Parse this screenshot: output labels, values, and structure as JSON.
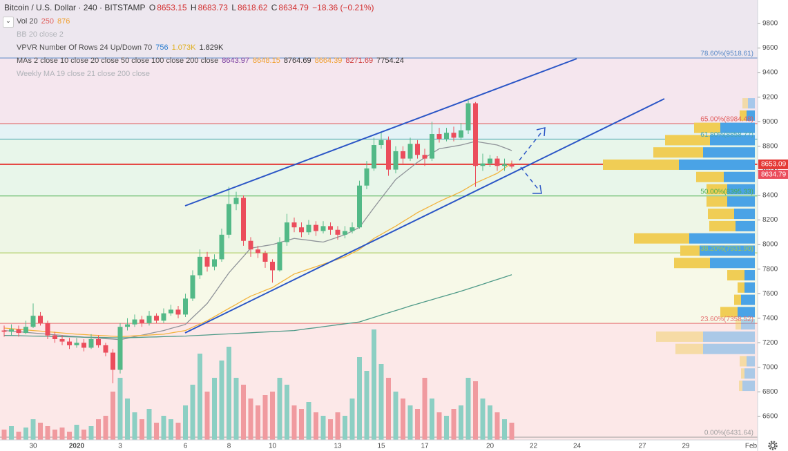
{
  "header": {
    "symbol": "Bitcoin / U.S. Dollar · 240 · BITSTAMP",
    "o": "O",
    "h": "H",
    "l": "L",
    "c": "C",
    "change": "−18.36 (−0.21%)"
  },
  "indicators": [
    {
      "name": "Vol 20",
      "values": [
        "250",
        "876"
      ],
      "colors": [
        "#e0605e",
        "#f0a030"
      ]
    },
    {
      "name": "BB 20 close 2",
      "values": [],
      "colors": []
    },
    {
      "name": "VPVR Number Of Rows 24 Up/Down 70",
      "values": [
        "756",
        "1.073K",
        "1.829K"
      ],
      "colors": [
        "#2f80d0",
        "#e0b020",
        "#333333"
      ]
    },
    {
      "name": "MAs 2 close 10 close 20 close 50 close 100 close 200 close",
      "values": [
        "8643.97",
        "8648.15",
        "8764.69",
        "8664.39",
        "8271.69",
        "7754.24"
      ],
      "colors": [
        "#7b3fa0",
        "#f0a030",
        "#333333",
        "#f0a030",
        "#d04040",
        "#333333"
      ]
    },
    {
      "name": "Weekly MA 19 close 21 close 200 close",
      "values": [],
      "colors": []
    }
  ],
  "chart_data": {
    "type": "candlestick",
    "categories": [
      null,
      null,
      null,
      null,
      "30",
      null,
      null,
      null,
      null,
      null,
      "2020",
      null,
      null,
      null,
      null,
      null,
      "3",
      null,
      null,
      null,
      null,
      null,
      null,
      null,
      null,
      "6",
      null,
      null,
      null,
      null,
      null,
      "8",
      null,
      null,
      null,
      null,
      null,
      "10",
      null,
      null,
      null,
      null,
      null,
      null,
      null,
      null,
      "13",
      null,
      null,
      null,
      null,
      null,
      "15",
      null,
      null,
      null,
      null,
      null,
      "17",
      null,
      null,
      null,
      null,
      null,
      null,
      null,
      null,
      "20",
      null,
      null,
      null,
      null,
      null,
      "22",
      null,
      null,
      null,
      null,
      null,
      "24",
      null,
      null,
      null,
      null,
      null,
      null,
      null,
      null,
      "27",
      null,
      null,
      null,
      null,
      null,
      "29",
      null,
      null,
      null,
      null,
      null,
      null,
      null,
      null,
      "Feb"
    ],
    "open": [
      7300,
      7290,
      7310,
      7280,
      7330,
      7420,
      7360,
      7260,
      7230,
      7210,
      7180,
      7200,
      7160,
      7230,
      7180,
      7120,
      6980,
      7330,
      7350,
      7390,
      7360,
      7420,
      7380,
      7440,
      7470,
      7430,
      7560,
      7750,
      7900,
      7820,
      7880,
      8080,
      8330,
      8380,
      8030,
      7960,
      7930,
      7860,
      7790,
      8020,
      8180,
      8140,
      8100,
      8160,
      8110,
      8150,
      8120,
      8080,
      8110,
      8140,
      8480,
      8620,
      8810,
      8850,
      8610,
      8760,
      8700,
      8820,
      8730,
      8700,
      8900,
      8860,
      8910,
      8870,
      8930,
      9150,
      8640,
      8660,
      8700,
      8640,
      8653.15,
      null,
      null,
      null,
      null,
      null,
      null,
      null,
      null,
      null,
      null,
      null,
      null,
      null,
      null,
      null,
      null,
      null,
      null,
      null,
      null,
      null,
      null,
      null,
      null,
      null,
      null,
      null,
      null,
      null,
      null,
      null,
      null,
      null
    ],
    "high": [
      7340,
      7350,
      7340,
      7380,
      7520,
      7450,
      7380,
      7290,
      7260,
      7240,
      7240,
      7230,
      7270,
      7260,
      7200,
      7150,
      7360,
      7400,
      7430,
      7420,
      7460,
      7440,
      7480,
      7510,
      7500,
      7600,
      7790,
      7960,
      7940,
      7920,
      8130,
      8470,
      8430,
      8400,
      8060,
      7990,
      7950,
      7880,
      8060,
      8250,
      8220,
      8180,
      8200,
      8190,
      8190,
      8180,
      8150,
      8150,
      8180,
      8520,
      8680,
      8870,
      8920,
      8880,
      8800,
      8800,
      8870,
      8850,
      8780,
      9000,
      8950,
      8950,
      8960,
      8990,
      9190,
      9160,
      8740,
      8730,
      8720,
      8700,
      8683.73,
      null,
      null,
      null,
      null,
      null,
      null,
      null,
      null,
      null,
      null,
      null,
      null,
      null,
      null,
      null,
      null,
      null,
      null,
      null,
      null,
      null,
      null,
      null,
      null,
      null,
      null,
      null,
      null,
      null,
      null,
      null,
      null,
      null
    ],
    "low": [
      7250,
      7260,
      7250,
      7270,
      7320,
      7340,
      7230,
      7200,
      7180,
      7150,
      7160,
      7130,
      7150,
      7160,
      7090,
      6870,
      6950,
      7300,
      7330,
      7330,
      7340,
      7360,
      7360,
      7420,
      7400,
      7410,
      7540,
      7720,
      7780,
      7790,
      7860,
      8050,
      8280,
      7990,
      7900,
      7890,
      7810,
      7690,
      7780,
      7990,
      8100,
      8060,
      8080,
      8070,
      8090,
      8080,
      8040,
      8050,
      8090,
      8130,
      8450,
      8600,
      8780,
      8560,
      8580,
      8660,
      8680,
      8700,
      8640,
      8680,
      8830,
      8840,
      8840,
      8850,
      8900,
      8470,
      8600,
      8630,
      8600,
      8600,
      8618.62,
      null,
      null,
      null,
      null,
      null,
      null,
      null,
      null,
      null,
      null,
      null,
      null,
      null,
      null,
      null,
      null,
      null,
      null,
      null,
      null,
      null,
      null,
      null,
      null,
      null,
      null,
      null,
      null,
      null,
      null,
      null,
      null,
      null
    ],
    "close": [
      7290,
      7310,
      7280,
      7330,
      7420,
      7360,
      7260,
      7230,
      7210,
      7180,
      7200,
      7160,
      7230,
      7180,
      7120,
      6980,
      7330,
      7350,
      7390,
      7360,
      7420,
      7380,
      7440,
      7470,
      7430,
      7560,
      7750,
      7900,
      7820,
      7880,
      8080,
      8330,
      8380,
      8030,
      7960,
      7930,
      7860,
      7790,
      8020,
      8180,
      8140,
      8100,
      8160,
      8110,
      8150,
      8120,
      8080,
      8110,
      8140,
      8480,
      8620,
      8810,
      8850,
      8610,
      8760,
      8700,
      8820,
      8730,
      8700,
      8900,
      8860,
      8910,
      8870,
      8930,
      9150,
      8640,
      8660,
      8700,
      8640,
      8653.15,
      8634.79,
      null,
      null,
      null,
      null,
      null,
      null,
      null,
      null,
      null,
      null,
      null,
      null,
      null,
      null,
      null,
      null,
      null,
      null,
      null,
      null,
      null,
      null,
      null,
      null,
      null,
      null,
      null,
      null,
      null,
      null,
      null,
      null,
      null
    ],
    "volume": [
      150,
      200,
      120,
      180,
      300,
      250,
      200,
      150,
      180,
      120,
      220,
      150,
      200,
      300,
      350,
      700,
      900,
      600,
      400,
      300,
      450,
      250,
      350,
      300,
      250,
      500,
      800,
      1250,
      700,
      900,
      1150,
      1350,
      900,
      800,
      600,
      500,
      650,
      700,
      900,
      800,
      500,
      450,
      550,
      400,
      350,
      300,
      400,
      350,
      600,
      1200,
      1000,
      1600,
      1100,
      900,
      700,
      600,
      500,
      450,
      900,
      600,
      400,
      350,
      450,
      500,
      900,
      850,
      600,
      500,
      400,
      300,
      250,
      null,
      null,
      null,
      null,
      null,
      null,
      null,
      null,
      null,
      null,
      null,
      null,
      null,
      null,
      null,
      null,
      null,
      null,
      null,
      null,
      null,
      null,
      null,
      null,
      null,
      null,
      null,
      null,
      null,
      null,
      null,
      null,
      null
    ],
    "moving_averages": [
      {
        "color": "#8f9399",
        "values": [
          7300,
          7295,
          7290,
          7285,
          7280,
          7275,
          7270,
          7265,
          7260,
          7255,
          7250,
          7246,
          7242,
          7238,
          7234,
          7230,
          7225,
          7237,
          7250,
          7262,
          7275,
          7288,
          7300,
          7317,
          7333,
          7350,
          7407,
          7463,
          7520,
          7603,
          7687,
          7770,
          7837,
          7903,
          7970,
          7980,
          7990,
          8000,
          8017,
          8033,
          8050,
          8042,
          8035,
          8027,
          8020,
          8040,
          8060,
          8080,
          8110,
          8140,
          8220,
          8300,
          8377,
          8453,
          8530,
          8577,
          8623,
          8670,
          8707,
          8743,
          8780,
          8790,
          8800,
          8810,
          8825,
          8840,
          8830,
          8820,
          8810,
          8788,
          8765,
          null,
          null,
          null,
          null,
          null,
          null,
          null,
          null,
          null,
          null,
          null,
          null,
          null,
          null,
          null,
          null,
          null,
          null,
          null,
          null,
          null,
          null,
          null,
          null,
          null,
          null,
          null,
          null,
          null,
          null,
          null,
          null,
          null
        ]
      },
      {
        "color": "#f2b33d",
        "values": [
          7320,
          7315,
          7310,
          7305,
          7300,
          7295,
          7290,
          7285,
          7280,
          7275,
          7270,
          7267,
          7263,
          7260,
          7257,
          7253,
          7250,
          7253,
          7257,
          7260,
          7263,
          7267,
          7270,
          7280,
          7290,
          7300,
          7327,
          7353,
          7380,
          7413,
          7447,
          7480,
          7513,
          7547,
          7580,
          7603,
          7627,
          7650,
          7687,
          7723,
          7760,
          7780,
          7800,
          7820,
          7840,
          7860,
          7880,
          7900,
          7930,
          7960,
          8005,
          8050,
          8083,
          8117,
          8150,
          8187,
          8223,
          8260,
          8290,
          8320,
          8350,
          8377,
          8403,
          8430,
          8465,
          8500,
          8527,
          8553,
          8580,
          8622,
          8664,
          null,
          null,
          null,
          null,
          null,
          null,
          null,
          null,
          null,
          null,
          null,
          null,
          null,
          null,
          null,
          null,
          null,
          null,
          null,
          null,
          null,
          null,
          null,
          null,
          null,
          null,
          null,
          null,
          null,
          null,
          null,
          null,
          null
        ]
      },
      {
        "color": "#4e9a88",
        "values": [
          7260,
          7259,
          7258,
          7256,
          7255,
          7254,
          7253,
          7251,
          7250,
          7249,
          7248,
          7246,
          7245,
          7244,
          7243,
          7241,
          7240,
          7242,
          7243,
          7245,
          7247,
          7248,
          7250,
          7252,
          7253,
          7255,
          7258,
          7261,
          7264,
          7267,
          7270,
          7273,
          7276,
          7279,
          7282,
          7285,
          7288,
          7291,
          7294,
          7297,
          7300,
          7308,
          7316,
          7323,
          7331,
          7339,
          7347,
          7354,
          7362,
          7370,
          7389,
          7407,
          7426,
          7444,
          7463,
          7481,
          7500,
          7517,
          7534,
          7551,
          7569,
          7586,
          7603,
          7620,
          7639,
          7658,
          7677,
          7697,
          7716,
          7735,
          7754,
          null,
          null,
          null,
          null,
          null,
          null,
          null,
          null,
          null,
          null,
          null,
          null,
          null,
          null,
          null,
          null,
          null,
          null,
          null,
          null,
          null,
          null,
          null,
          null,
          null,
          null,
          null,
          null,
          null,
          null,
          null,
          null,
          null
        ]
      }
    ],
    "up_color": "#53b987",
    "down_color": "#eb4d5c",
    "volume_up_color": "#8ccfc3",
    "volume_down_color": "#f09a9f",
    "ylim": [
      6409,
      9991
    ],
    "yticks": [
      6600,
      6800,
      7000,
      7200,
      7400,
      7600,
      7800,
      8000,
      8200,
      8400,
      8600,
      8800,
      9000,
      9200,
      9400,
      9600,
      9800
    ],
    "fib_top_fill": "#ede7ef",
    "fib_levels": [
      {
        "value": 9518.61,
        "label": "78.60%(9518.61)",
        "color": "#5b8ac7",
        "fill": "#f5e6ee"
      },
      {
        "value": 8984.48,
        "label": "65.00%(8984.48)",
        "color": "#e05a5a",
        "fill": "#e4f3f6"
      },
      {
        "value": 8858.77,
        "label": "61.80%(8858.77)",
        "color": "#45a5b0",
        "fill": "#e8f6ea"
      },
      {
        "value": 8395.33,
        "label": "50.00%(8395.33)",
        "color": "#4caf50",
        "fill": "#eef6e6"
      },
      {
        "value": 7931.9,
        "label": "38.20%(7931.90)",
        "color": "#a4c74f",
        "fill": "#f7f9e8"
      },
      {
        "value": 7358.52,
        "label": "23.60%(7358.52)",
        "color": "#e57373",
        "fill": "#fce8e8"
      },
      {
        "value": 6431.64,
        "label": "0.00%(6431.64)",
        "color": "#9e9e9e",
        "fill": "#fce8e8"
      }
    ],
    "current_price": 8653.09,
    "current_price_color": "#e53935",
    "volume_profile": {
      "up_color": "#4aa3e6",
      "down_color": "#f0cd55",
      "rows": [
        {
          "price": 9150,
          "up": 100,
          "down": 80
        },
        {
          "price": 9050,
          "up": 120,
          "down": 100
        },
        {
          "price": 8950,
          "up": 500,
          "down": 380
        },
        {
          "price": 8850,
          "up": 650,
          "down": 650
        },
        {
          "price": 8750,
          "up": 750,
          "down": 720
        },
        {
          "price": 8650,
          "up": 1100,
          "down": 1100
        },
        {
          "price": 8550,
          "up": 450,
          "down": 400
        },
        {
          "price": 8450,
          "up": 400,
          "down": 300
        },
        {
          "price": 8350,
          "up": 400,
          "down": 300
        },
        {
          "price": 8250,
          "up": 300,
          "down": 380
        },
        {
          "price": 8150,
          "up": 280,
          "down": 380
        },
        {
          "price": 8050,
          "up": 950,
          "down": 800
        },
        {
          "price": 7950,
          "up": 800,
          "down": 280
        },
        {
          "price": 7850,
          "up": 650,
          "down": 520
        },
        {
          "price": 7750,
          "up": 150,
          "down": 250
        },
        {
          "price": 7650,
          "up": 150,
          "down": 100
        },
        {
          "price": 7550,
          "up": 200,
          "down": 100
        },
        {
          "price": 7450,
          "up": 250,
          "down": 250
        },
        {
          "price": 7350,
          "up": 200,
          "down": 80
        },
        {
          "price": 7250,
          "up": 750,
          "down": 680
        },
        {
          "price": 7150,
          "up": 750,
          "down": 400
        },
        {
          "price": 7050,
          "up": 120,
          "down": 100
        },
        {
          "price": 6950,
          "up": 150,
          "down": 50
        },
        {
          "price": 6850,
          "up": 180,
          "down": 50
        }
      ]
    }
  }
}
